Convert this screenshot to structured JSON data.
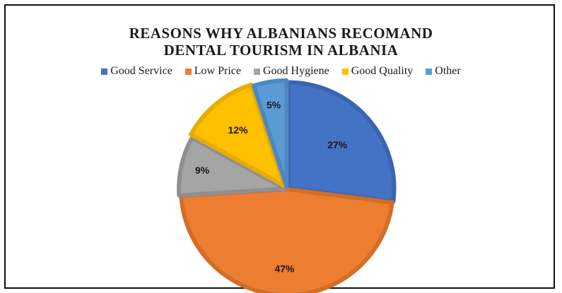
{
  "chart_data": {
    "type": "pie",
    "title_lines": [
      "REASONS WHY ALBANIANS RECOMAND",
      "DENTAL TOURISM IN ALBANIA"
    ],
    "categories": [
      "Good Service",
      "Low Price",
      "Good Hygiene",
      "Good Quality",
      "Other"
    ],
    "values": [
      27,
      47,
      9,
      12,
      5
    ],
    "labels": [
      "27%",
      "47%",
      "9%",
      "12%",
      "5%"
    ],
    "colors": [
      "#4472C4",
      "#ED7D31",
      "#A5A5A5",
      "#FFC000",
      "#5B9BD5"
    ],
    "border_colors": [
      "#3b64b0",
      "#d36d27",
      "#8f8f8f",
      "#e6ad00",
      "#4f88c0"
    ],
    "legend_position": "top"
  }
}
